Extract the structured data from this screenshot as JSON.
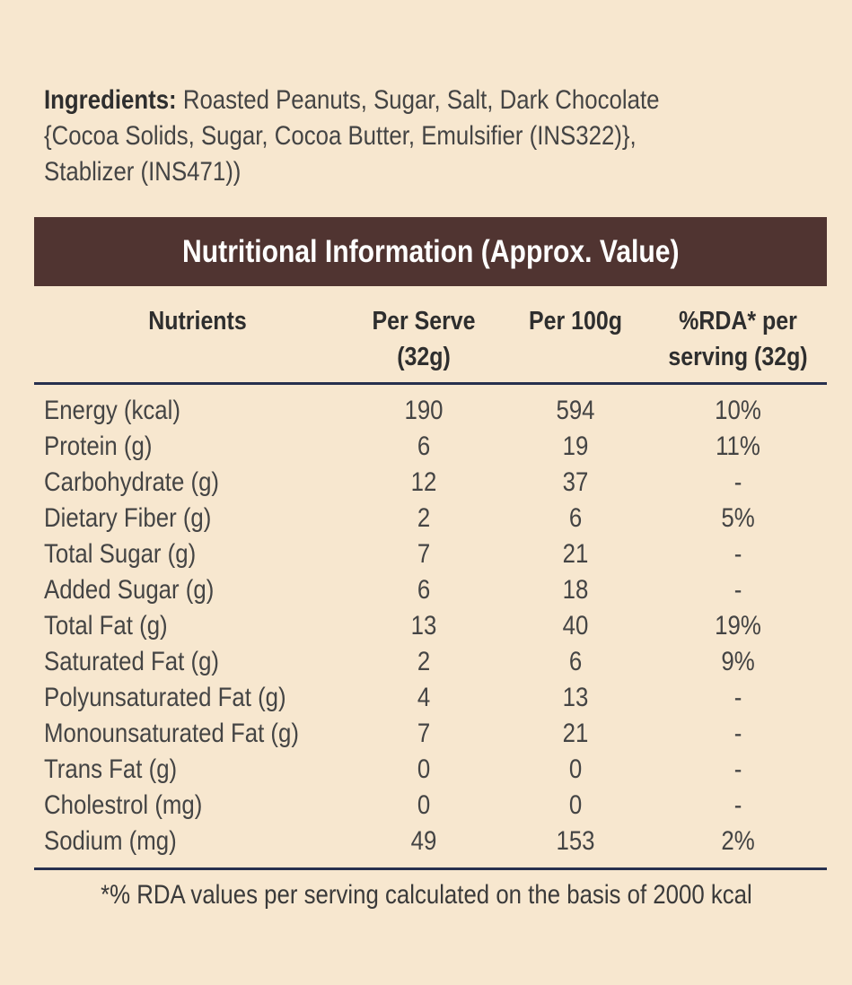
{
  "ingredients": {
    "label": "Ingredients:",
    "text": " Roasted Peanuts, Sugar, Salt, Dark Chocolate\n{Cocoa Solids, Sugar, Cocoa Butter, Emulsifier (INS322)},\nStablizer (INS471))"
  },
  "table": {
    "title": "Nutritional Information (Approx. Value)",
    "headers": {
      "nutrients": "Nutrients",
      "per_serve": "Per Serve\n(32g)",
      "per_100g": "Per 100g",
      "rda": "%RDA* per\nserving (32g)"
    },
    "rows": [
      {
        "name": "Energy (kcal)",
        "per_serve": "190",
        "per_100g": "594",
        "rda": "10%"
      },
      {
        "name": "Protein (g)",
        "per_serve": "6",
        "per_100g": "19",
        "rda": "11%"
      },
      {
        "name": "Carbohydrate (g)",
        "per_serve": "12",
        "per_100g": "37",
        "rda": "-"
      },
      {
        "name": "Dietary Fiber (g)",
        "per_serve": "2",
        "per_100g": "6",
        "rda": "5%"
      },
      {
        "name": "Total Sugar (g)",
        "per_serve": "7",
        "per_100g": "21",
        "rda": "-"
      },
      {
        "name": "Added Sugar (g)",
        "per_serve": "6",
        "per_100g": "18",
        "rda": "-"
      },
      {
        "name": "Total Fat (g)",
        "per_serve": "13",
        "per_100g": "40",
        "rda": "19%"
      },
      {
        "name": "Saturated Fat (g)",
        "per_serve": "2",
        "per_100g": "6",
        "rda": "9%"
      },
      {
        "name": "Polyunsaturated Fat (g)",
        "per_serve": "4",
        "per_100g": "13",
        "rda": "-"
      },
      {
        "name": "Monounsaturated Fat (g)",
        "per_serve": "7",
        "per_100g": "21",
        "rda": "-"
      },
      {
        "name": "Trans Fat (g)",
        "per_serve": "0",
        "per_100g": "0",
        "rda": "-"
      },
      {
        "name": "Cholestrol (mg)",
        "per_serve": "0",
        "per_100g": "0",
        "rda": "-"
      },
      {
        "name": "Sodium (mg)",
        "per_serve": "49",
        "per_100g": "153",
        "rda": "2%"
      }
    ],
    "footnote": "*% RDA values per serving calculated on the basis of 2000 kcal"
  },
  "colors": {
    "background": "#f7e7cf",
    "banner": "#503431",
    "rule": "#27304e"
  }
}
